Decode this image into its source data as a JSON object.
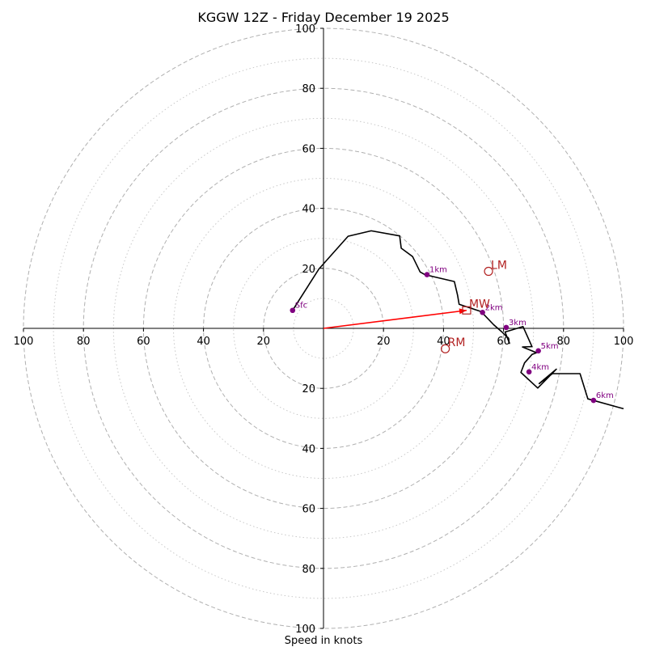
{
  "chart_data": {
    "type": "hodograph",
    "title": "KGGW 12Z - Friday December 19 2025",
    "xlabel": "Speed in knots",
    "units": "knots",
    "range": [
      -100,
      100
    ],
    "rings_major": [
      20,
      40,
      60,
      80,
      100
    ],
    "rings_minor": [
      10,
      30,
      50,
      70,
      90
    ],
    "ticks": [
      {
        "label": "100",
        "value": -100
      },
      {
        "label": "80",
        "value": -80
      },
      {
        "label": "60",
        "value": -60
      },
      {
        "label": "40",
        "value": -40
      },
      {
        "label": "20",
        "value": -20
      },
      {
        "label": "20",
        "value": 20
      },
      {
        "label": "40",
        "value": 40
      },
      {
        "label": "60",
        "value": 60
      },
      {
        "label": "80",
        "value": 80
      },
      {
        "label": "100",
        "value": 100
      }
    ],
    "wind_profile": [
      [
        -10.3,
        6.0
      ],
      [
        -1.5,
        19.8
      ],
      [
        8.2,
        30.7
      ],
      [
        15.9,
        32.5
      ],
      [
        25.4,
        30.8
      ],
      [
        25.9,
        26.7
      ],
      [
        29.7,
        23.9
      ],
      [
        32.2,
        18.8
      ],
      [
        33.8,
        17.9
      ],
      [
        43.6,
        15.6
      ],
      [
        44.7,
        11.0
      ],
      [
        45.2,
        8.0
      ],
      [
        52.5,
        5.6
      ],
      [
        56.7,
        1.2
      ],
      [
        59.5,
        -1.2
      ],
      [
        61.5,
        -3.3
      ],
      [
        62.0,
        -5.0
      ],
      [
        60.5,
        -1.2
      ],
      [
        66.5,
        0.6
      ],
      [
        69.5,
        -6.1
      ],
      [
        66.3,
        -6.2
      ],
      [
        71.0,
        -8.1
      ],
      [
        69.5,
        -8.7
      ],
      [
        67.0,
        -11.5
      ],
      [
        65.8,
        -14.7
      ],
      [
        71.4,
        -19.9
      ],
      [
        77.6,
        -13.6
      ],
      [
        71.9,
        -18.4
      ],
      [
        76.3,
        -15.1
      ],
      [
        85.5,
        -15.1
      ],
      [
        88.1,
        -23.5
      ],
      [
        100.0,
        -26.8
      ]
    ],
    "height_markers": [
      {
        "label": "Sfc",
        "u": -10.3,
        "v": 6.0
      },
      {
        "label": "1km",
        "u": 34.5,
        "v": 17.9
      },
      {
        "label": "2km",
        "u": 53.0,
        "v": 5.3
      },
      {
        "label": "3km",
        "u": 60.9,
        "v": 0.3
      },
      {
        "label": "4km",
        "u": 68.5,
        "v": -14.5
      },
      {
        "label": "5km",
        "u": 71.6,
        "v": -7.5
      },
      {
        "label": "6km",
        "u": 90.0,
        "v": -24.0
      }
    ],
    "storm_motion": [
      {
        "label": "LM",
        "u": 55.0,
        "v": 19.0,
        "marker": "circle"
      },
      {
        "label": "MW",
        "u": 47.7,
        "v": 6.0,
        "marker": "square"
      },
      {
        "label": "RM",
        "u": 40.6,
        "v": -6.8,
        "marker": "circle"
      }
    ],
    "shear_vector": {
      "u": 47.7,
      "v": 6.0
    },
    "colors": {
      "profile": "#000000",
      "markers": "#800080",
      "storm": "#b22222",
      "vector": "#ff0000",
      "grid": "#b0b0b0"
    }
  }
}
